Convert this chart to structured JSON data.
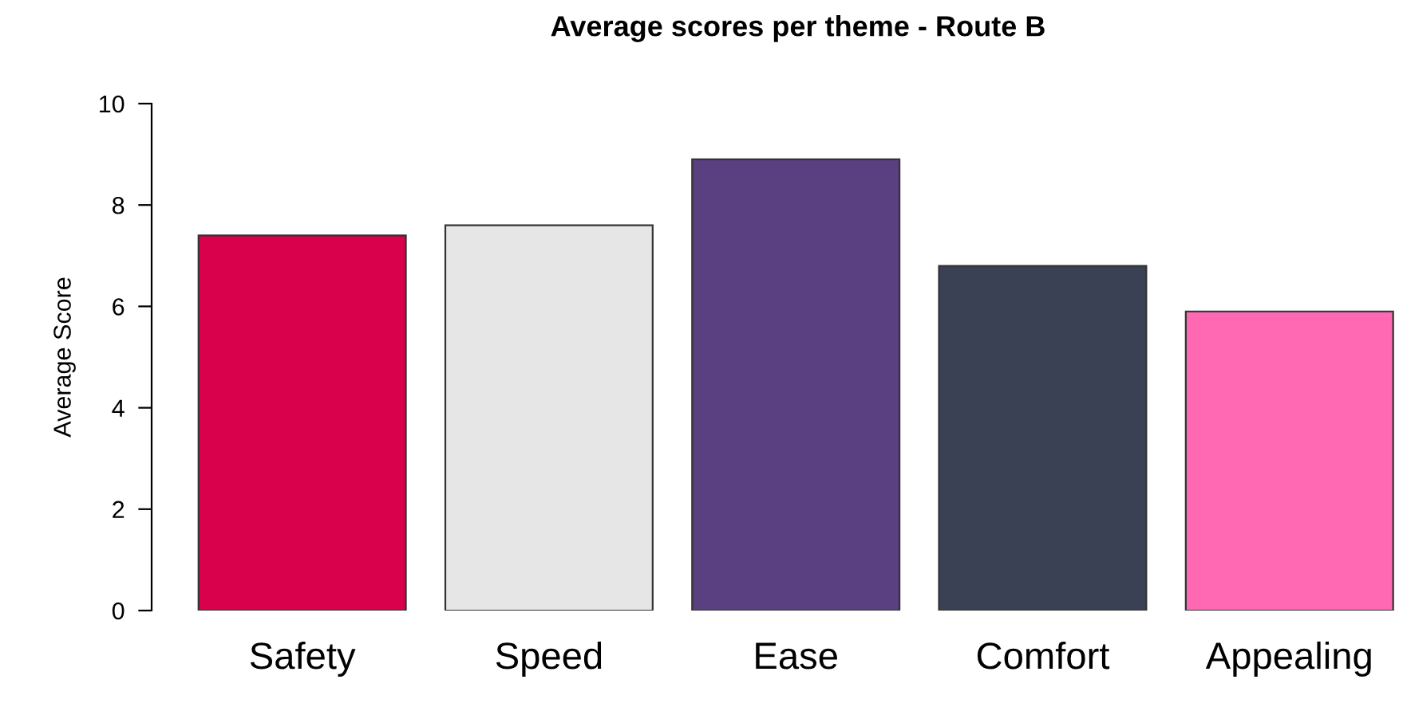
{
  "chart_data": {
    "type": "bar",
    "title": "Average scores per theme - Route B",
    "ylabel": "Average Score",
    "categories": [
      "Safety",
      "Speed",
      "Ease",
      "Comfort",
      "Appealing"
    ],
    "values": [
      7.4,
      7.6,
      8.9,
      6.8,
      5.9
    ],
    "colors": [
      "#d9004c",
      "#e6e6e6",
      "#5a4080",
      "#3a4155",
      "#ff69b4"
    ],
    "ylim": [
      0,
      10
    ],
    "yticks": [
      0,
      2,
      4,
      6,
      8,
      10
    ],
    "grid": false,
    "legend": false
  }
}
